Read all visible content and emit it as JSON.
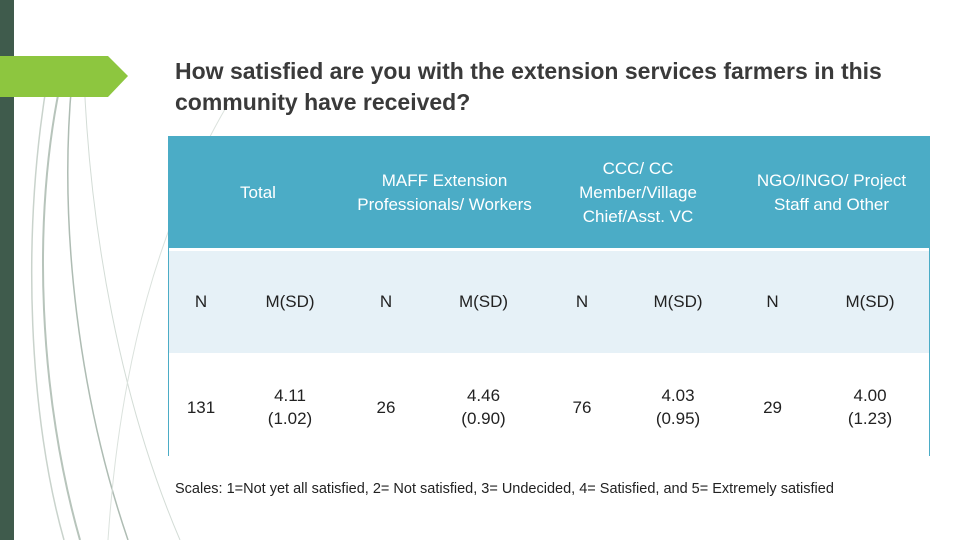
{
  "title": "How satisfied are you with the extension services farmers in this community have received?",
  "table": {
    "groups": [
      "Total",
      "MAFF Extension Professionals/ Workers",
      "CCC/ CC Member/Village Chief/Asst. VC",
      "NGO/INGO/ Project Staff and Other"
    ],
    "subheaders": [
      "N",
      "M(SD)",
      "N",
      "M(SD)",
      "N",
      "M(SD)",
      "N",
      "M(SD)"
    ],
    "values": [
      {
        "n": "131",
        "mean": "4.11",
        "sd": "(1.02)"
      },
      {
        "n": "26",
        "mean": "4.46",
        "sd": "(0.90)"
      },
      {
        "n": "76",
        "mean": "4.03",
        "sd": "(0.95)"
      },
      {
        "n": "29",
        "mean": "4.00",
        "sd": "(1.23)"
      }
    ]
  },
  "footnote": "Scales: 1=Not yet all satisfied, 2= Not satisfied, 3= Undecided, 4= Satisfied, and 5= Extremely satisfied",
  "colors": {
    "header_bg": "#4bacc6",
    "subheader_bg": "#e6f1f7",
    "accent_green": "#8dc63f",
    "side_bar": "#3f5b4c"
  }
}
